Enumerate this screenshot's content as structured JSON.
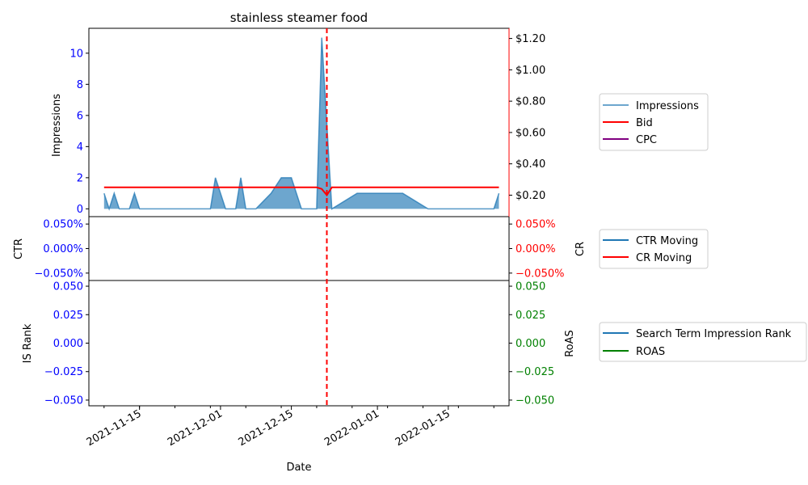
{
  "chart_data": {
    "type": "line",
    "title": "stainless steamer food",
    "xlabel": "Date",
    "x_ticks": [
      "2021-11-15",
      "2021-12-01",
      "2021-12-15",
      "2022-01-01",
      "2022-01-15"
    ],
    "x_range": [
      "2021-11-05",
      "2022-01-27"
    ],
    "event_line_date": "2021-12-22",
    "colors": {
      "impressions": "#1f77b4",
      "bid": "#ff0000",
      "cpc": "#800080",
      "ctr": "#1f77b4",
      "cr": "#ff0000",
      "rank": "#1f77b4",
      "roas": "#008000",
      "left_tick": "#0000ff",
      "event_line": "#ff0000"
    },
    "panels": [
      {
        "id": "top",
        "ylabel_left": "Impressions",
        "ylabel_right": "",
        "left_ticks": [
          "0",
          "2",
          "4",
          "6",
          "8",
          "10"
        ],
        "left_ylim": [
          -0.5,
          11.6
        ],
        "right_ticks": [
          "$0.20",
          "$0.40",
          "$0.60",
          "$0.80",
          "$1.00",
          "$1.20"
        ],
        "right_ylim": [
          0.063,
          1.265
        ],
        "legend": [
          "Impressions",
          "Bid",
          "CPC"
        ],
        "impressions": {
          "name": "Impressions",
          "x": [
            "2021-11-08",
            "2021-11-09",
            "2021-11-10",
            "2021-11-11",
            "2021-11-13",
            "2021-11-14",
            "2021-11-15",
            "2021-11-29",
            "2021-11-30",
            "2021-12-02",
            "2021-12-04",
            "2021-12-05",
            "2021-12-06",
            "2021-12-08",
            "2021-12-11",
            "2021-12-13",
            "2021-12-15",
            "2021-12-17",
            "2021-12-19",
            "2021-12-20",
            "2021-12-21",
            "2021-12-23",
            "2021-12-28",
            "2022-01-06",
            "2022-01-11",
            "2022-01-24",
            "2022-01-25"
          ],
          "values": [
            1,
            0,
            1,
            0,
            0,
            1,
            0,
            0,
            2,
            0,
            0,
            2,
            0,
            0,
            1,
            2,
            2,
            0,
            0,
            0,
            11,
            0,
            1,
            1,
            0,
            0,
            1
          ]
        },
        "bid": {
          "name": "Bid",
          "x": [
            "2021-11-08",
            "2021-12-20",
            "2021-12-21",
            "2021-12-22",
            "2021-12-23",
            "2022-01-25"
          ],
          "values": [
            0.25,
            0.25,
            0.24,
            0.2,
            0.25,
            0.25
          ]
        }
      },
      {
        "id": "middle",
        "ylabel_left": "CTR",
        "ylabel_right": "CR",
        "left_ticks": [
          "0.050%",
          "0.000%",
          "−0.050%"
        ],
        "right_ticks": [
          "0.050%",
          "0.000%",
          "−0.050%"
        ],
        "ylim": [
          -0.055,
          0.055
        ],
        "legend": [
          "CTR Moving",
          "CR Moving"
        ]
      },
      {
        "id": "bottom",
        "ylabel_left": "IS Rank",
        "ylabel_right": "RoAS",
        "left_ticks": [
          "0.050",
          "0.025",
          "0.000",
          "−0.025",
          "−0.050"
        ],
        "right_ticks": [
          "0.050",
          "0.025",
          "0.000",
          "−0.025",
          "−0.050"
        ],
        "ylim": [
          -0.055,
          0.055
        ],
        "legend": [
          "Search Term Impression Rank",
          "ROAS"
        ]
      }
    ]
  }
}
